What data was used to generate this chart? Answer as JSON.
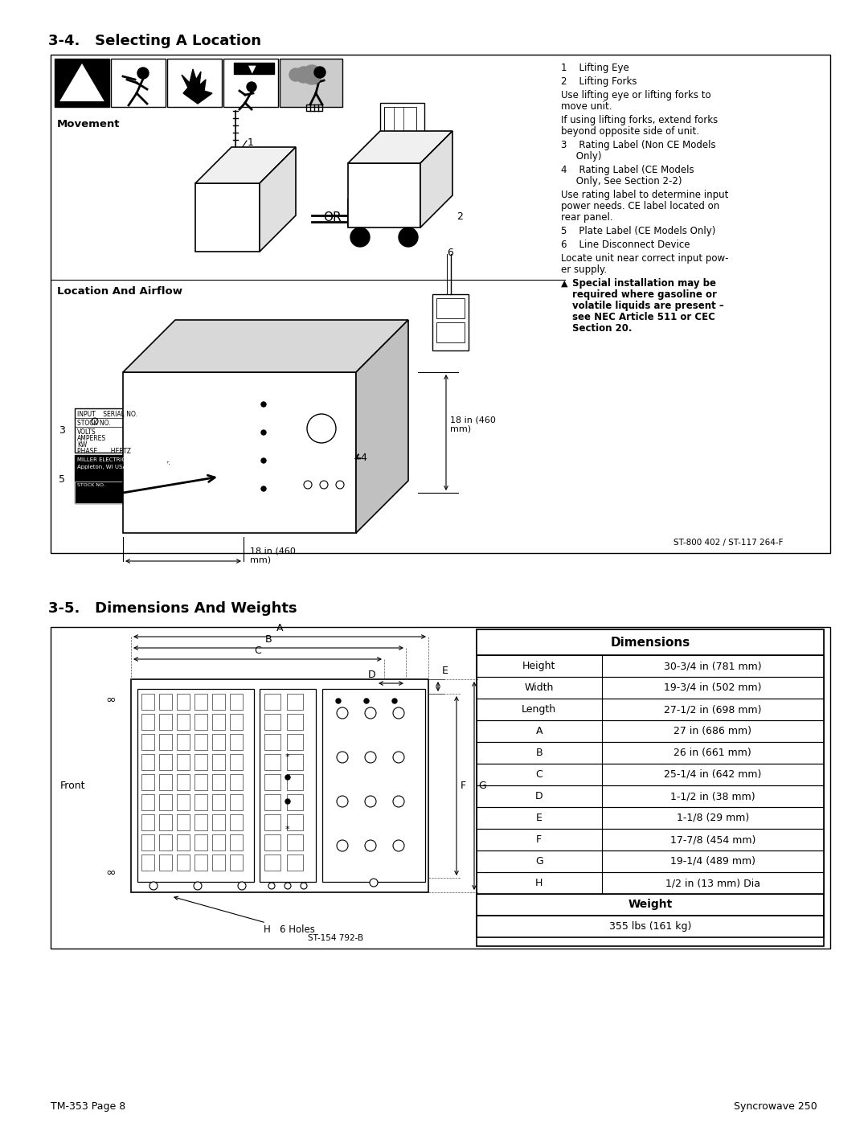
{
  "page_title_left": "TM-353 Page 8",
  "page_title_right": "Syncrowave 250",
  "section1_title": "3-4.   Selecting A Location",
  "section2_title": "3-5.   Dimensions And Weights",
  "bg_color": "#ffffff",
  "movement_label": "Movement",
  "location_airflow_label": "Location And Airflow",
  "right_texts": [
    {
      "text": "1    Lifting Eye",
      "bold": false,
      "indent": 0
    },
    {
      "text": "2    Lifting Forks",
      "bold": false,
      "indent": 0
    },
    {
      "text": "Use lifting eye or lifting forks to\nmove unit.",
      "bold": false,
      "indent": 0
    },
    {
      "text": "If using lifting forks, extend forks\nbeyond opposite side of unit.",
      "bold": false,
      "indent": 0
    },
    {
      "text": "3    Rating Label (Non CE Models\n     Only)",
      "bold": false,
      "indent": 0
    },
    {
      "text": "4    Rating Label (CE Models\n     Only, See Section 2-2)",
      "bold": false,
      "indent": 0
    },
    {
      "text": "Use rating label to determine input\npower needs. CE label located on\nrear panel.",
      "bold": false,
      "indent": 0
    },
    {
      "text": "5    Plate Label (CE Models Only)",
      "bold": false,
      "indent": 0
    },
    {
      "text": "6    Line Disconnect Device",
      "bold": false,
      "indent": 0
    },
    {
      "text": "Locate unit near correct input pow-\ner supply.",
      "bold": false,
      "indent": 0
    },
    {
      "text": "Special installation may be\nrequired where gasoline or\nvolatile liquids are present –\nsee NEC Article 511 or CEC\nSection 20.",
      "bold": true,
      "indent": 14,
      "triangle": true
    }
  ],
  "dim_table_header": "Dimensions",
  "dim_rows": [
    [
      "Height",
      "30-3/4 in (781 mm)"
    ],
    [
      "Width",
      "19-3/4 in (502 mm)"
    ],
    [
      "Length",
      "27-1/2 in (698 mm)"
    ],
    [
      "A",
      "27 in (686 mm)"
    ],
    [
      "B",
      "26 in (661 mm)"
    ],
    [
      "C",
      "25-1/4 in (642 mm)"
    ],
    [
      "D",
      "1-1/2 in (38 mm)"
    ],
    [
      "E",
      "1-1/8 (29 mm)"
    ],
    [
      "F",
      "17-7/8 (454 mm)"
    ],
    [
      "G",
      "19-1/4 (489 mm)"
    ],
    [
      "H",
      "1/2 in (13 mm) Dia"
    ]
  ],
  "weight_header": "Weight",
  "weight_value": "355 lbs (161 kg)",
  "st_code1": "ST-800 402 / ST-117 264-F",
  "st_code2": "ST-154 792-B",
  "front_label": "Front",
  "h_holes_label": "H   6 Holes",
  "airflow_dims": "18 in (460\nmm)"
}
